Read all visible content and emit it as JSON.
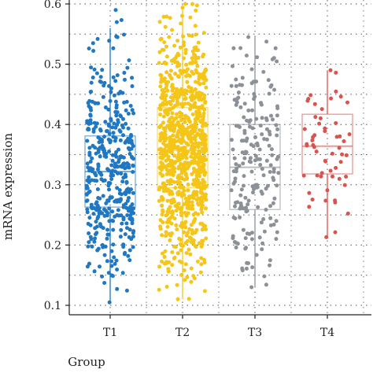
{
  "chart_data": {
    "type": "scatter",
    "subtype": "jittered strip plot with box overlays",
    "xlabel": "Group",
    "ylabel": "mRNA expression",
    "categories": [
      "T1",
      "T2",
      "T3",
      "T4"
    ],
    "ylim": [
      0.08,
      0.6
    ],
    "yticks": [
      0.1,
      0.2,
      0.3,
      0.4,
      0.5,
      0.6
    ],
    "ytick_labels": [
      "0.1",
      "0.2",
      "0.3",
      "0.4",
      "0.5",
      "0.6"
    ],
    "grid": "dotted, horizontal and vertical",
    "series": [
      {
        "category": "T1",
        "color": "#1f78c1",
        "n_points": 420,
        "box": {
          "q1": 0.263,
          "median": 0.322,
          "q3": 0.381,
          "whisker_low": 0.105,
          "whisker_high": 0.56
        },
        "point_range": [
          0.105,
          0.59
        ]
      },
      {
        "category": "T2",
        "color": "#f5c518",
        "n_points": 900,
        "box": {
          "q1": 0.295,
          "median": 0.357,
          "q3": 0.428,
          "whisker_low": 0.11,
          "whisker_high": 0.6
        },
        "point_range": [
          0.11,
          0.6
        ]
      },
      {
        "category": "T3",
        "color": "#8c9198",
        "n_points": 200,
        "box": {
          "q1": 0.259,
          "median": 0.329,
          "q3": 0.4,
          "whisker_low": 0.13,
          "whisker_high": 0.545
        },
        "point_range": [
          0.13,
          0.545
        ]
      },
      {
        "category": "T4",
        "color": "#d9534f",
        "n_points": 55,
        "box": {
          "q1": 0.318,
          "median": 0.364,
          "q3": 0.417,
          "whisker_low": 0.213,
          "whisker_high": 0.49
        },
        "point_range": [
          0.213,
          0.49
        ]
      }
    ]
  }
}
